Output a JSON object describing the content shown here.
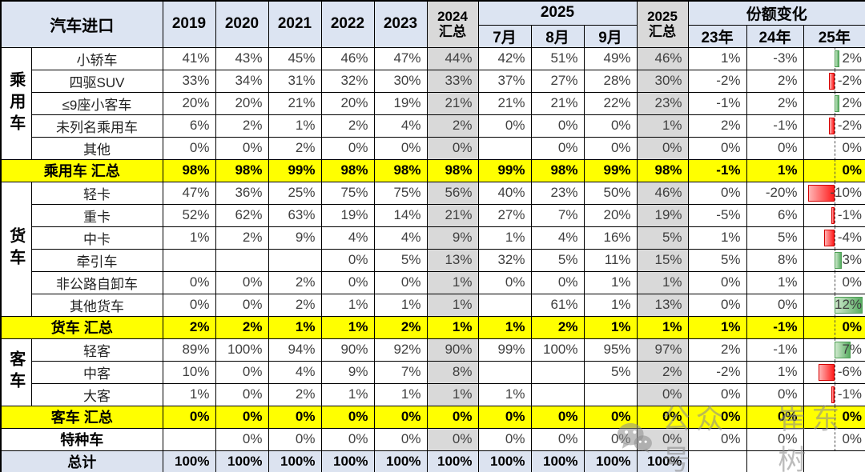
{
  "header": {
    "title": "汽车进口",
    "years": [
      "2019",
      "2020",
      "2021",
      "2022",
      "2023"
    ],
    "col2024": {
      "line1": "2024",
      "line2": "汇总"
    },
    "year2025": "2025",
    "months": [
      "7月",
      "8月",
      "9月"
    ],
    "col2025": {
      "line1": "2025",
      "line2": "汇总"
    },
    "share_change": "份额变化",
    "share_years": [
      "23年",
      "24年",
      "25年"
    ]
  },
  "colors": {
    "header_blue": "#dce4f2",
    "summary_gray": "#d9d9d9",
    "subtotal_yellow": "#ffff00",
    "grand_total_blue": "#dce3f0",
    "bar_positive_green": "#58ad62",
    "bar_negative_red": "#ff1e1e"
  },
  "groups": [
    {
      "name": "乘用车",
      "rows": 5
    },
    {
      "name": "货车",
      "rows": 6
    },
    {
      "name": "客车",
      "rows": 3
    }
  ],
  "rows": [
    {
      "kind": "data",
      "group": 0,
      "label": "小轿车",
      "values": [
        "41%",
        "43%",
        "45%",
        "46%",
        "47%",
        "44%",
        "42%",
        "51%",
        "49%",
        "46%",
        "1%",
        "-3%",
        "2%"
      ],
      "bar": 2
    },
    {
      "kind": "data",
      "label": "四驱SUV",
      "values": [
        "33%",
        "34%",
        "31%",
        "32%",
        "30%",
        "33%",
        "37%",
        "27%",
        "28%",
        "30%",
        "-2%",
        "2%",
        "-2%"
      ],
      "bar": -2
    },
    {
      "kind": "data",
      "label": "≤9座小客车",
      "values": [
        "20%",
        "20%",
        "21%",
        "20%",
        "19%",
        "21%",
        "21%",
        "21%",
        "22%",
        "23%",
        "-1%",
        "2%",
        "2%"
      ],
      "bar": 2
    },
    {
      "kind": "data",
      "label": "未列名乘用车",
      "values": [
        "6%",
        "2%",
        "1%",
        "2%",
        "4%",
        "2%",
        "0%",
        "0%",
        "0%",
        "1%",
        "2%",
        "-1%",
        "-2%"
      ],
      "bar": -2
    },
    {
      "kind": "data",
      "label": "其他",
      "values": [
        "0%",
        "0%",
        "2%",
        "0%",
        "0%",
        "0%",
        "",
        "0%",
        "0%",
        "0%",
        "0%",
        "0%",
        "0%"
      ],
      "bar": 0
    },
    {
      "kind": "subtotal",
      "label": "乘用车 汇总",
      "values": [
        "98%",
        "98%",
        "99%",
        "98%",
        "98%",
        "98%",
        "99%",
        "98%",
        "99%",
        "98%",
        "-1%",
        "1%",
        "0%"
      ],
      "bar": 0
    },
    {
      "kind": "data",
      "group": 1,
      "label": "轻卡",
      "values": [
        "47%",
        "36%",
        "25%",
        "75%",
        "75%",
        "56%",
        "40%",
        "23%",
        "50%",
        "46%",
        "0%",
        "-20%",
        "-10%"
      ],
      "bar": -10
    },
    {
      "kind": "data",
      "label": "重卡",
      "values": [
        "52%",
        "62%",
        "63%",
        "19%",
        "14%",
        "21%",
        "27%",
        "7%",
        "20%",
        "19%",
        "-5%",
        "6%",
        "-1%"
      ],
      "bar": -1
    },
    {
      "kind": "data",
      "label": "中卡",
      "values": [
        "1%",
        "2%",
        "9%",
        "4%",
        "4%",
        "9%",
        "1%",
        "4%",
        "16%",
        "5%",
        "1%",
        "5%",
        "-4%"
      ],
      "bar": -4
    },
    {
      "kind": "data",
      "label": "牵引车",
      "values": [
        "",
        "",
        "",
        "0%",
        "5%",
        "13%",
        "32%",
        "5%",
        "11%",
        "15%",
        "5%",
        "8%",
        "3%"
      ],
      "bar": 3
    },
    {
      "kind": "data",
      "label": "非公路自卸车",
      "values": [
        "0%",
        "0%",
        "2%",
        "0%",
        "0%",
        "1%",
        "0%",
        "0%",
        "1%",
        "1%",
        "0%",
        "1%",
        "0%"
      ],
      "bar": 0
    },
    {
      "kind": "data",
      "label": "其他货车",
      "values": [
        "0%",
        "0%",
        "2%",
        "1%",
        "1%",
        "1%",
        "",
        "61%",
        "1%",
        "13%",
        "0%",
        "0%",
        "12%"
      ],
      "bar": 12
    },
    {
      "kind": "subtotal",
      "label": "货车 汇总",
      "values": [
        "2%",
        "2%",
        "1%",
        "1%",
        "2%",
        "1%",
        "1%",
        "2%",
        "1%",
        "1%",
        "1%",
        "-1%",
        "0%"
      ],
      "bar": 0
    },
    {
      "kind": "data",
      "group": 2,
      "label": "轻客",
      "values": [
        "89%",
        "100%",
        "94%",
        "90%",
        "92%",
        "90%",
        "99%",
        "100%",
        "95%",
        "97%",
        "2%",
        "-1%",
        "7%"
      ],
      "bar": 7
    },
    {
      "kind": "data",
      "label": "中客",
      "values": [
        "10%",
        "0%",
        "4%",
        "9%",
        "7%",
        "8%",
        "",
        "",
        "5%",
        "2%",
        "-2%",
        "1%",
        "-6%"
      ],
      "bar": -6
    },
    {
      "kind": "data",
      "label": "大客",
      "values": [
        "1%",
        "0%",
        "2%",
        "1%",
        "1%",
        "1%",
        "1%",
        "",
        "",
        "0%",
        "0%",
        "0%",
        "-1%"
      ],
      "bar": -1
    },
    {
      "kind": "subtotal",
      "label": "客车 汇总",
      "values": [
        "0%",
        "0%",
        "0%",
        "0%",
        "0%",
        "0%",
        "0%",
        "0%",
        "0%",
        "0%",
        "0%",
        "0%",
        "0%"
      ],
      "bar": 0
    },
    {
      "kind": "special",
      "label": "特种车",
      "values": [
        "",
        "0%",
        "0%",
        "0%",
        "0%",
        "0%",
        "0%",
        "0%",
        "0%",
        "0%",
        "0%",
        "0%",
        "0%"
      ],
      "bar": 0
    },
    {
      "kind": "grand",
      "label": "总计",
      "values": [
        "100%",
        "100%",
        "100%",
        "100%",
        "100%",
        "100%",
        "100%",
        "100%",
        "100%",
        "100%",
        "",
        "",
        ""
      ],
      "bar": null
    }
  ],
  "watermark": {
    "icon": "wechat-icon",
    "text1": "公众号",
    "text2": "崔东树"
  }
}
